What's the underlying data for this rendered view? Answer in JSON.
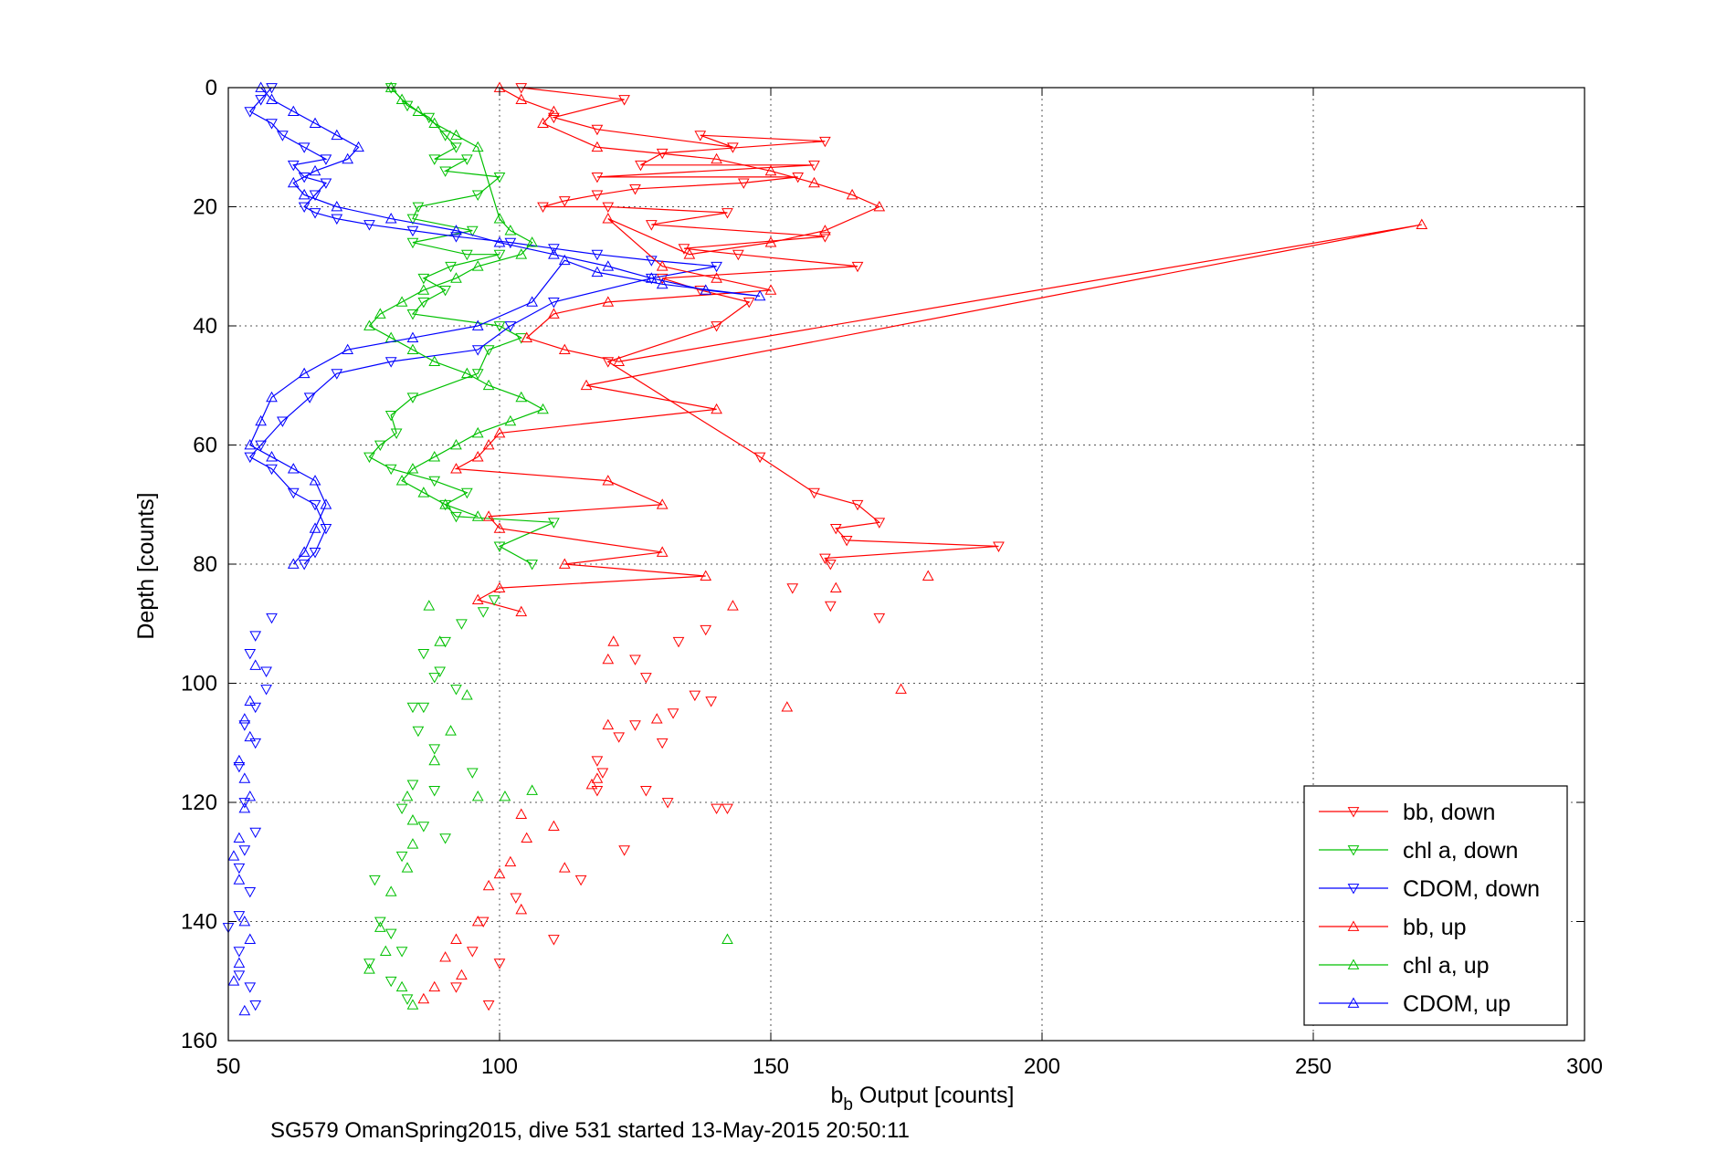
{
  "chart_data": {
    "type": "line",
    "xlabel_main": "b",
    "xlabel_sub": "b",
    "xlabel_rest": " Output [counts]",
    "ylabel": "Depth [counts]",
    "caption": "SG579 OmanSpring2015, dive 531 started 13-May-2015 20:50:11",
    "xlim": [
      50,
      300
    ],
    "ylim": [
      0,
      160
    ],
    "y_reversed": true,
    "grid": true,
    "legend_position": "bottom-right",
    "xticks": [
      "50",
      "100",
      "150",
      "200",
      "250",
      "300"
    ],
    "yticks": [
      "0",
      "20",
      "40",
      "60",
      "80",
      "100",
      "120",
      "140",
      "160"
    ],
    "series": [
      {
        "name": "bb, down",
        "color": "#ff0000",
        "marker": "triangle-down",
        "x": [
          104,
          123,
          110,
          118,
          143,
          137,
          160,
          130,
          126,
          158,
          118,
          155,
          145,
          125,
          118,
          112,
          108,
          120,
          142,
          128,
          160,
          134,
          144,
          166,
          130,
          137,
          146,
          140,
          120,
          148,
          158,
          166,
          170,
          162,
          164,
          192,
          160,
          161
        ],
        "y": [
          0,
          2,
          5,
          7,
          10,
          8,
          9,
          11,
          13,
          13,
          15,
          15,
          16,
          17,
          18,
          19,
          20,
          20,
          21,
          23,
          25,
          27,
          28,
          30,
          32,
          34,
          36,
          40,
          46,
          62,
          68,
          70,
          73,
          74,
          76,
          77,
          79,
          80
        ]
      },
      {
        "name": "chl a, down",
        "color": "#00c000",
        "marker": "triangle-down",
        "x": [
          80,
          83,
          87,
          90,
          92,
          88,
          94,
          90,
          100,
          96,
          85,
          84,
          95,
          84,
          94,
          100,
          91,
          86,
          90,
          86,
          84,
          100,
          104,
          98,
          96,
          84,
          80,
          81,
          78,
          76,
          80,
          88,
          94,
          90,
          92,
          110,
          100,
          106
        ],
        "y": [
          0,
          3,
          5,
          8,
          10,
          12,
          12,
          14,
          15,
          18,
          20,
          22,
          24,
          26,
          28,
          28,
          30,
          32,
          34,
          36,
          38,
          40,
          42,
          44,
          48,
          52,
          55,
          58,
          60,
          62,
          64,
          66,
          68,
          70,
          72,
          73,
          77,
          80
        ]
      },
      {
        "name": "CDOM, down",
        "color": "#0000ff",
        "marker": "triangle-down",
        "x": [
          58,
          56,
          54,
          58,
          60,
          64,
          68,
          62,
          64,
          68,
          66,
          64,
          66,
          70,
          76,
          84,
          92,
          102,
          110,
          118,
          128,
          140,
          128,
          110,
          102,
          96,
          80,
          70,
          65,
          60,
          56,
          54,
          58,
          62,
          66,
          68,
          66,
          64
        ],
        "y": [
          0,
          2,
          4,
          6,
          8,
          10,
          12,
          13,
          15,
          16,
          18,
          20,
          21,
          22,
          23,
          24,
          25,
          26,
          27,
          28,
          29,
          30,
          32,
          36,
          40,
          44,
          46,
          48,
          52,
          56,
          60,
          62,
          64,
          68,
          70,
          74,
          78,
          80
        ]
      },
      {
        "name": "bb, up",
        "color": "#ff0000",
        "marker": "triangle-up",
        "x": [
          100,
          104,
          110,
          108,
          118,
          140,
          150,
          158,
          165,
          170,
          160,
          150,
          135,
          120,
          130,
          140,
          150,
          120,
          110,
          105,
          112,
          122,
          270,
          116,
          140,
          100,
          98,
          96,
          92,
          120,
          130,
          98,
          100,
          130,
          112,
          138,
          100,
          96,
          104
        ],
        "y": [
          0,
          2,
          4,
          6,
          10,
          12,
          14,
          16,
          18,
          20,
          24,
          26,
          28,
          22,
          30,
          32,
          34,
          36,
          38,
          42,
          44,
          46,
          23,
          50,
          54,
          58,
          60,
          62,
          64,
          66,
          70,
          72,
          74,
          78,
          80,
          82,
          84,
          86,
          88
        ]
      },
      {
        "name": "chl a, up",
        "color": "#00c000",
        "marker": "triangle-up",
        "x": [
          80,
          82,
          85,
          88,
          92,
          96,
          100,
          102,
          106,
          104,
          96,
          92,
          86,
          82,
          78,
          76,
          80,
          84,
          88,
          94,
          98,
          104,
          108,
          102,
          96,
          92,
          88,
          84,
          82,
          86,
          90,
          96
        ],
        "y": [
          0,
          2,
          4,
          6,
          8,
          10,
          22,
          24,
          26,
          28,
          30,
          32,
          34,
          36,
          38,
          40,
          42,
          44,
          46,
          48,
          50,
          52,
          54,
          56,
          58,
          60,
          62,
          64,
          66,
          68,
          70,
          72
        ]
      },
      {
        "name": "CDOM, up",
        "color": "#0000ff",
        "marker": "triangle-up",
        "x": [
          56,
          58,
          62,
          66,
          70,
          74,
          72,
          66,
          62,
          64,
          70,
          80,
          92,
          100,
          110,
          120,
          128,
          138,
          148,
          130,
          118,
          112,
          106,
          96,
          84,
          72,
          64,
          58,
          56,
          54,
          58,
          62,
          66,
          68,
          66,
          64,
          62
        ],
        "y": [
          0,
          2,
          4,
          6,
          8,
          10,
          12,
          14,
          16,
          18,
          20,
          22,
          24,
          26,
          28,
          30,
          32,
          34,
          35,
          33,
          31,
          29,
          36,
          40,
          42,
          44,
          48,
          52,
          56,
          60,
          62,
          64,
          66,
          70,
          74,
          78,
          80
        ]
      }
    ],
    "scatter_series": [
      {
        "name": "bb, down (scatter)",
        "color": "#ff0000",
        "marker": "triangle-down",
        "x": [
          154,
          161,
          170,
          138,
          133,
          125,
          127,
          136,
          139,
          132,
          125,
          122,
          130,
          118,
          119,
          118,
          127,
          131,
          140,
          142,
          123,
          115,
          103,
          97,
          110,
          95,
          100,
          92,
          98
        ],
        "y": [
          84,
          87,
          89,
          91,
          93,
          96,
          99,
          102,
          103,
          105,
          107,
          109,
          110,
          113,
          115,
          118,
          118,
          120,
          121,
          121,
          128,
          133,
          136,
          140,
          143,
          145,
          147,
          151,
          154
        ]
      },
      {
        "name": "chl a, down (scatter)",
        "color": "#00c000",
        "marker": "triangle-down",
        "x": [
          99,
          97,
          93,
          90,
          86,
          89,
          88,
          92,
          86,
          84,
          85,
          88,
          95,
          84,
          88,
          82,
          86,
          90,
          82,
          77,
          78,
          80,
          82,
          76,
          80,
          83
        ],
        "y": [
          86,
          88,
          90,
          93,
          95,
          98,
          99,
          101,
          104,
          104,
          108,
          111,
          115,
          117,
          118,
          121,
          124,
          126,
          129,
          133,
          140,
          142,
          145,
          147,
          150,
          153
        ]
      },
      {
        "name": "CDOM, down (scatter)",
        "color": "#0000ff",
        "marker": "triangle-down",
        "x": [
          58,
          55,
          54,
          57,
          57,
          55,
          53,
          55,
          52,
          53,
          55,
          53,
          52,
          54,
          52,
          50,
          52,
          52,
          54,
          55
        ],
        "y": [
          89,
          92,
          95,
          98,
          101,
          104,
          107,
          110,
          114,
          120,
          125,
          128,
          131,
          135,
          139,
          141,
          145,
          149,
          151,
          154
        ]
      },
      {
        "name": "bb, up (scatter)",
        "color": "#ff0000",
        "marker": "triangle-up",
        "x": [
          174,
          179,
          162,
          143,
          153,
          121,
          120,
          129,
          120,
          117,
          118,
          104,
          110,
          105,
          102,
          112,
          100,
          98,
          104,
          96,
          92,
          90,
          93,
          88,
          86
        ],
        "y": [
          101,
          82,
          84,
          87,
          104,
          93,
          96,
          106,
          107,
          117,
          116,
          122,
          124,
          126,
          130,
          131,
          132,
          134,
          138,
          140,
          143,
          146,
          149,
          151,
          153
        ]
      },
      {
        "name": "chl a, up (scatter)",
        "color": "#00c000",
        "marker": "triangle-up",
        "x": [
          87,
          89,
          94,
          91,
          88,
          96,
          101,
          106,
          83,
          84,
          84,
          83,
          80,
          78,
          79,
          76,
          82,
          84,
          142
        ],
        "y": [
          87,
          93,
          102,
          108,
          113,
          119,
          119,
          118,
          119,
          123,
          127,
          131,
          135,
          141,
          145,
          148,
          151,
          154,
          143
        ]
      },
      {
        "name": "CDOM, up (scatter)",
        "color": "#0000ff",
        "marker": "triangle-up",
        "x": [
          55,
          54,
          53,
          54,
          52,
          53,
          54,
          53,
          52,
          51,
          52,
          53,
          54,
          52,
          51,
          53
        ],
        "y": [
          97,
          103,
          106,
          109,
          113,
          116,
          119,
          121,
          126,
          129,
          133,
          140,
          143,
          147,
          150,
          155
        ]
      }
    ]
  }
}
